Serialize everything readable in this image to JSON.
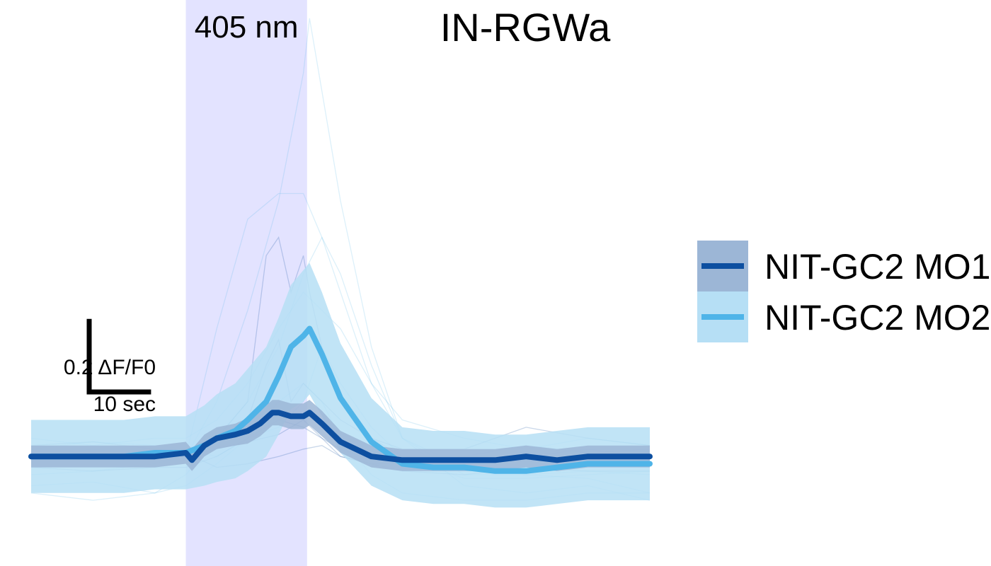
{
  "chart_data": {
    "type": "line",
    "title": "IN-RGWa",
    "xlabel": "",
    "ylabel": "",
    "axes_visible": false,
    "grid": false,
    "xlim": [
      0,
      100
    ],
    "ylim": [
      -0.3,
      1.25
    ],
    "stimulus": {
      "label": "405 nm",
      "start": 25,
      "end": 44.6,
      "color": "#e3e3ff"
    },
    "scale_bar": {
      "y_label": "0.2 ΔF/F0",
      "y_size": 0.2,
      "x_label": "10 sec",
      "x_size": 10
    },
    "legend": {
      "position": "right"
    },
    "series": [
      {
        "name": "NIT-GC2 MO1",
        "color": "#0d4fa0",
        "band_color": "#9cb6d6",
        "x": [
          0,
          5,
          10,
          15,
          20,
          25,
          26,
          28,
          30,
          33,
          35,
          37,
          39,
          40,
          42,
          44,
          45,
          47,
          50,
          55,
          60,
          65,
          70,
          75,
          80,
          85,
          90,
          95,
          100
        ],
        "mean": [
          0.0,
          0.0,
          0.0,
          0.0,
          0.0,
          0.01,
          -0.01,
          0.03,
          0.05,
          0.06,
          0.07,
          0.09,
          0.12,
          0.12,
          0.11,
          0.11,
          0.12,
          0.09,
          0.04,
          0.0,
          -0.01,
          -0.01,
          -0.01,
          -0.01,
          0.0,
          -0.01,
          0.0,
          0.0,
          0.0
        ],
        "sem": [
          0.03,
          0.03,
          0.03,
          0.03,
          0.03,
          0.03,
          0.03,
          0.03,
          0.03,
          0.03,
          0.035,
          0.035,
          0.035,
          0.035,
          0.035,
          0.035,
          0.035,
          0.035,
          0.03,
          0.03,
          0.03,
          0.03,
          0.03,
          0.03,
          0.03,
          0.03,
          0.03,
          0.03,
          0.03
        ]
      },
      {
        "name": "NIT-GC2 MO2",
        "color": "#4fb4e8",
        "band_color": "#b6dff5",
        "x": [
          0,
          5,
          10,
          15,
          20,
          25,
          28,
          30,
          33,
          35,
          38,
          40,
          42,
          44,
          45,
          47,
          50,
          55,
          60,
          65,
          70,
          75,
          80,
          85,
          90,
          95,
          100
        ],
        "mean": [
          0.0,
          0.0,
          0.0,
          0.0,
          0.01,
          0.01,
          0.03,
          0.05,
          0.07,
          0.1,
          0.15,
          0.22,
          0.3,
          0.33,
          0.35,
          0.28,
          0.16,
          0.04,
          -0.02,
          -0.03,
          -0.03,
          -0.04,
          -0.04,
          -0.03,
          -0.02,
          -0.02,
          -0.02
        ],
        "sem": [
          0.1,
          0.1,
          0.1,
          0.1,
          0.1,
          0.1,
          0.11,
          0.12,
          0.13,
          0.14,
          0.15,
          0.16,
          0.17,
          0.18,
          0.18,
          0.17,
          0.15,
          0.12,
          0.1,
          0.1,
          0.1,
          0.1,
          0.1,
          0.1,
          0.1,
          0.1,
          0.1
        ]
      }
    ],
    "individual_traces": [
      {
        "group": "NIT-GC2 MO2",
        "x": [
          0,
          10,
          20,
          25,
          30,
          35,
          40,
          44,
          45,
          47,
          50,
          55,
          60,
          70,
          80,
          90,
          100
        ],
        "y": [
          0.0,
          0.02,
          0.0,
          0.0,
          0.15,
          0.4,
          0.7,
          1.05,
          1.2,
          1.0,
          0.7,
          0.3,
          0.05,
          -0.05,
          -0.05,
          -0.04,
          -0.05
        ]
      },
      {
        "group": "NIT-GC2 MO2",
        "x": [
          0,
          10,
          20,
          25,
          30,
          35,
          40,
          44,
          47,
          50,
          55,
          60,
          70,
          80,
          90,
          100
        ],
        "y": [
          -0.05,
          -0.04,
          -0.02,
          0.0,
          0.35,
          0.65,
          0.72,
          0.72,
          0.6,
          0.45,
          0.2,
          0.05,
          -0.03,
          -0.05,
          -0.06,
          -0.1
        ]
      },
      {
        "group": "NIT-GC2 MO2",
        "x": [
          0,
          10,
          20,
          25,
          30,
          35,
          40,
          44,
          47,
          50,
          55,
          60,
          70,
          80,
          90,
          100
        ],
        "y": [
          -0.08,
          -0.07,
          -0.1,
          -0.05,
          0.05,
          0.15,
          0.3,
          0.5,
          0.6,
          0.5,
          0.25,
          0.05,
          -0.08,
          -0.1,
          -0.08,
          -0.12
        ]
      },
      {
        "group": "NIT-GC2 MO2",
        "x": [
          0,
          10,
          20,
          25,
          30,
          35,
          40,
          44,
          47,
          50,
          55,
          60,
          70,
          80,
          90,
          100
        ],
        "y": [
          0.05,
          0.03,
          0.05,
          0.05,
          0.1,
          0.2,
          0.35,
          0.45,
          0.4,
          0.35,
          0.2,
          0.1,
          0.05,
          0.02,
          0.05,
          0.03
        ]
      },
      {
        "group": "NIT-GC2 MO2",
        "x": [
          0,
          10,
          20,
          25,
          30,
          35,
          40,
          44,
          47,
          50,
          55,
          60,
          70,
          80,
          90,
          100
        ],
        "y": [
          0.02,
          0.04,
          0.03,
          0.02,
          0.0,
          0.05,
          0.08,
          0.15,
          0.3,
          0.2,
          0.08,
          0.0,
          -0.06,
          -0.06,
          -0.05,
          -0.04
        ]
      },
      {
        "group": "NIT-GC2 MO2",
        "x": [
          0,
          10,
          20,
          25,
          30,
          35,
          40,
          44,
          47,
          50,
          55,
          60,
          70,
          80,
          90,
          100
        ],
        "y": [
          -0.1,
          -0.12,
          -0.1,
          -0.08,
          -0.02,
          0.05,
          0.15,
          0.2,
          0.15,
          0.05,
          -0.05,
          -0.1,
          -0.12,
          -0.12,
          -0.1,
          -0.1
        ]
      },
      {
        "group": "NIT-GC2 MO1",
        "x": [
          0,
          10,
          20,
          25,
          30,
          35,
          38,
          40,
          42,
          44,
          45,
          47,
          50,
          55,
          60,
          70,
          80,
          90,
          100
        ],
        "y": [
          0.03,
          0.04,
          0.02,
          0.02,
          0.05,
          0.15,
          0.55,
          0.6,
          0.45,
          0.55,
          0.45,
          0.3,
          0.15,
          0.05,
          0.02,
          0.02,
          0.08,
          0.05,
          0.03
        ]
      },
      {
        "group": "NIT-GC2 MO1",
        "x": [
          0,
          10,
          20,
          25,
          30,
          35,
          38,
          40,
          42,
          44,
          47,
          50,
          55,
          60,
          70,
          80,
          90,
          100
        ],
        "y": [
          0.0,
          0.01,
          0.0,
          0.0,
          0.05,
          0.1,
          0.25,
          0.32,
          0.15,
          0.2,
          0.15,
          0.1,
          0.05,
          0.0,
          -0.01,
          0.0,
          0.02,
          0.0
        ]
      },
      {
        "group": "NIT-GC2 MO1",
        "x": [
          0,
          10,
          20,
          25,
          30,
          35,
          40,
          44,
          47,
          50,
          55,
          60,
          70,
          80,
          90,
          100
        ],
        "y": [
          -0.03,
          -0.04,
          -0.03,
          -0.03,
          0.0,
          0.05,
          0.1,
          0.08,
          0.05,
          0.0,
          -0.02,
          -0.04,
          -0.05,
          -0.03,
          -0.04,
          -0.04
        ]
      },
      {
        "group": "NIT-GC2 MO1",
        "x": [
          0,
          10,
          20,
          25,
          30,
          35,
          40,
          44,
          47,
          50,
          55,
          60,
          70,
          80,
          90,
          100
        ],
        "y": [
          0.01,
          0.0,
          0.02,
          0.01,
          -0.03,
          -0.02,
          0.0,
          0.02,
          0.03,
          0.0,
          -0.02,
          -0.02,
          0.0,
          0.03,
          0.01,
          0.02
        ]
      },
      {
        "group": "NIT-GC2 MO1",
        "x": [
          0,
          10,
          20,
          25,
          30,
          35,
          40,
          44,
          47,
          50,
          55,
          60,
          70,
          80,
          90,
          100
        ],
        "y": [
          -0.01,
          0.0,
          -0.01,
          0.0,
          0.02,
          0.04,
          0.06,
          0.1,
          0.05,
          0.02,
          -0.01,
          -0.02,
          -0.02,
          -0.01,
          -0.02,
          -0.01
        ]
      }
    ]
  }
}
